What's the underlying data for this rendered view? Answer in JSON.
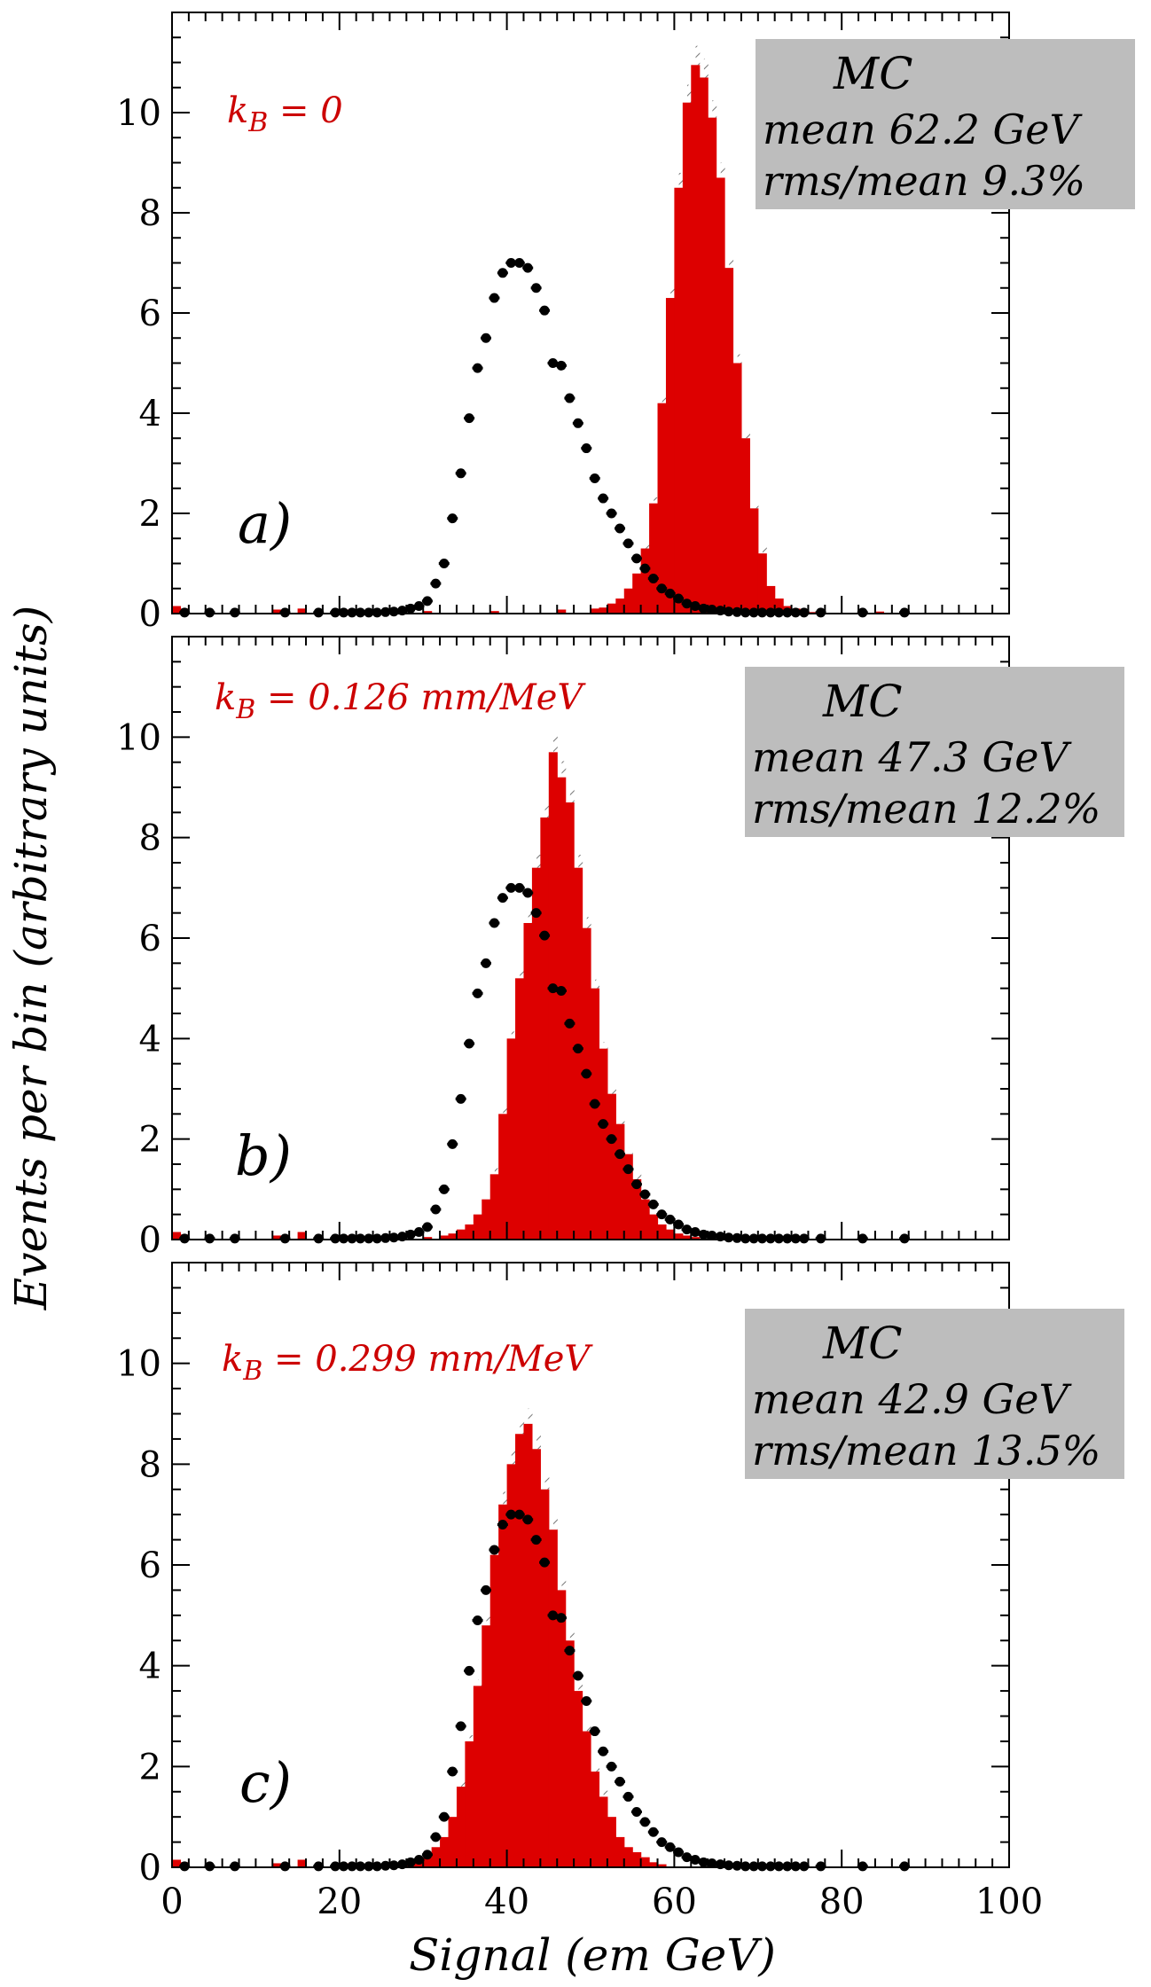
{
  "figure": {
    "ylabel": "Events per bin (arbitrary units)",
    "xlabel": "Signal (em GeV)"
  },
  "colors": {
    "mc_fill": "#dd0000",
    "data_marker": "#000000",
    "stat_box": "#bdbdbd",
    "label_red": "#cc0000",
    "error_hatch": "#777777"
  },
  "chart_data": [
    {
      "type": "bar",
      "panel_label": "a)",
      "kb_label": "kB = 0",
      "kb_sub": "B",
      "kb_text_pre": "k",
      "kb_text_post": " = 0",
      "stat_box": {
        "title": "MC",
        "mean_label": "mean",
        "mean_value": "62.2 GeV",
        "rms_label": "rms/mean",
        "rms_value": "9.3%"
      },
      "xlim": [
        0,
        100
      ],
      "ylim": [
        0,
        12
      ],
      "yticks": [
        0,
        2,
        4,
        6,
        8,
        10
      ],
      "xticks": [
        0,
        20,
        40,
        60,
        80,
        100
      ],
      "series": [
        {
          "kind": "histogram",
          "bin_width": 1,
          "x": [
            0,
            1,
            7,
            12,
            15,
            20,
            30,
            38,
            46,
            50,
            51,
            52,
            53,
            54,
            55,
            56,
            57,
            58,
            59,
            60,
            61,
            62,
            63,
            64,
            65,
            66,
            67,
            68,
            69,
            70,
            71,
            72,
            73,
            74,
            75,
            76,
            84
          ],
          "values": [
            0.15,
            0.1,
            0.05,
            0.08,
            0.1,
            0.08,
            0.05,
            0.05,
            0.08,
            0.1,
            0.12,
            0.2,
            0.3,
            0.5,
            0.8,
            1.3,
            2.2,
            4.2,
            6.3,
            8.5,
            10.2,
            10.95,
            10.7,
            9.9,
            8.7,
            6.9,
            5.0,
            3.5,
            2.1,
            1.2,
            0.55,
            0.3,
            0.15,
            0.1,
            0.06,
            0.03,
            0.04
          ]
        },
        {
          "kind": "data_points",
          "x": [
            1,
            4,
            7,
            13,
            17,
            19,
            20,
            21,
            22,
            23,
            24,
            25,
            26,
            27,
            28,
            29,
            30,
            31,
            32,
            33,
            34,
            35,
            36,
            37,
            38,
            39,
            40,
            41,
            42,
            43,
            44,
            45,
            46,
            47,
            48,
            49,
            50,
            51,
            52,
            53,
            54,
            55,
            56,
            57,
            58,
            59,
            60,
            61,
            62,
            63,
            64,
            65,
            66,
            67,
            68,
            69,
            70,
            71,
            72,
            73,
            74,
            75,
            77,
            82,
            87
          ],
          "values": [
            0.02,
            0.02,
            0.02,
            0.02,
            0.02,
            0.02,
            0.02,
            0.02,
            0.02,
            0.02,
            0.02,
            0.03,
            0.04,
            0.06,
            0.1,
            0.15,
            0.25,
            0.6,
            1.0,
            1.9,
            2.8,
            3.9,
            4.9,
            5.5,
            6.3,
            6.8,
            7.0,
            7.0,
            6.9,
            6.5,
            6.05,
            5.0,
            4.95,
            4.3,
            3.8,
            3.3,
            2.7,
            2.3,
            2.0,
            1.7,
            1.4,
            1.1,
            0.9,
            0.7,
            0.5,
            0.4,
            0.3,
            0.2,
            0.15,
            0.1,
            0.08,
            0.06,
            0.04,
            0.03,
            0.02,
            0.02,
            0.02,
            0.02,
            0.02,
            0.02,
            0.02,
            0.02,
            0.02,
            0.02,
            0.02
          ]
        }
      ]
    },
    {
      "type": "bar",
      "panel_label": "b)",
      "kb_sub": "B",
      "kb_text_pre": "k",
      "kb_text_post": " = 0.126 mm/MeV",
      "stat_box": {
        "title": "MC",
        "mean_label": "mean",
        "mean_value": "47.3 GeV",
        "rms_label": "rms/mean",
        "rms_value": "12.2%"
      },
      "xlim": [
        0,
        100
      ],
      "ylim": [
        0,
        12
      ],
      "yticks": [
        0,
        2,
        4,
        6,
        8,
        10
      ],
      "xticks": [
        0,
        20,
        40,
        60,
        80,
        100
      ],
      "series": [
        {
          "kind": "histogram",
          "bin_width": 1,
          "x": [
            0,
            1,
            7,
            12,
            15,
            20,
            30,
            32,
            33,
            34,
            35,
            36,
            37,
            38,
            39,
            40,
            41,
            42,
            43,
            44,
            45,
            46,
            47,
            48,
            49,
            50,
            51,
            52,
            53,
            54,
            55,
            56,
            57,
            58,
            59,
            60,
            61,
            62
          ],
          "values": [
            0.15,
            0.1,
            0.05,
            0.08,
            0.15,
            0.08,
            0.05,
            0.08,
            0.12,
            0.2,
            0.3,
            0.5,
            0.8,
            1.3,
            2.5,
            4.0,
            5.2,
            6.3,
            7.4,
            8.4,
            9.7,
            9.2,
            8.7,
            7.4,
            6.2,
            5.0,
            3.8,
            2.9,
            2.3,
            1.7,
            1.2,
            0.8,
            0.5,
            0.3,
            0.2,
            0.12,
            0.08,
            0.05
          ]
        },
        {
          "kind": "data_points",
          "x": [
            1,
            4,
            7,
            13,
            17,
            19,
            20,
            21,
            22,
            23,
            24,
            25,
            26,
            27,
            28,
            29,
            30,
            31,
            32,
            33,
            34,
            35,
            36,
            37,
            38,
            39,
            40,
            41,
            42,
            43,
            44,
            45,
            46,
            47,
            48,
            49,
            50,
            51,
            52,
            53,
            54,
            55,
            56,
            57,
            58,
            59,
            60,
            61,
            62,
            63,
            64,
            65,
            66,
            67,
            68,
            69,
            70,
            71,
            72,
            73,
            74,
            75,
            77,
            82,
            87
          ],
          "values": [
            0.02,
            0.02,
            0.02,
            0.02,
            0.02,
            0.02,
            0.02,
            0.02,
            0.02,
            0.02,
            0.02,
            0.03,
            0.04,
            0.06,
            0.1,
            0.15,
            0.25,
            0.6,
            1.0,
            1.9,
            2.8,
            3.9,
            4.9,
            5.5,
            6.3,
            6.8,
            7.0,
            7.0,
            6.9,
            6.5,
            6.05,
            5.0,
            4.95,
            4.3,
            3.8,
            3.3,
            2.7,
            2.3,
            2.0,
            1.7,
            1.4,
            1.1,
            0.9,
            0.7,
            0.5,
            0.4,
            0.3,
            0.2,
            0.15,
            0.1,
            0.08,
            0.06,
            0.04,
            0.03,
            0.02,
            0.02,
            0.02,
            0.02,
            0.02,
            0.02,
            0.02,
            0.02,
            0.02,
            0.02,
            0.02
          ]
        }
      ]
    },
    {
      "type": "bar",
      "panel_label": "c)",
      "kb_sub": "B",
      "kb_text_pre": "k",
      "kb_text_post": " = 0.299 mm/MeV",
      "stat_box": {
        "title": "MC",
        "mean_label": "mean",
        "mean_value": "42.9 GeV",
        "rms_label": "rms/mean",
        "rms_value": "13.5%"
      },
      "xlim": [
        0,
        100
      ],
      "ylim": [
        0,
        12
      ],
      "yticks": [
        0,
        2,
        4,
        6,
        8,
        10
      ],
      "xticks": [
        0,
        20,
        40,
        60,
        80,
        100
      ],
      "series": [
        {
          "kind": "histogram",
          "bin_width": 1,
          "x": [
            0,
            1,
            7,
            12,
            15,
            20,
            28,
            29,
            30,
            31,
            32,
            33,
            34,
            35,
            36,
            37,
            38,
            39,
            40,
            41,
            42,
            43,
            44,
            45,
            46,
            47,
            48,
            49,
            50,
            51,
            52,
            53,
            54,
            55,
            56,
            57,
            58
          ],
          "values": [
            0.15,
            0.1,
            0.05,
            0.08,
            0.15,
            0.08,
            0.05,
            0.1,
            0.2,
            0.4,
            0.6,
            1.0,
            1.6,
            2.5,
            3.6,
            4.8,
            6.2,
            7.2,
            8.0,
            8.6,
            8.8,
            8.3,
            7.5,
            6.7,
            5.5,
            4.5,
            3.5,
            2.7,
            1.9,
            1.4,
            1.0,
            0.6,
            0.4,
            0.3,
            0.2,
            0.1,
            0.06
          ]
        },
        {
          "kind": "data_points",
          "x": [
            1,
            4,
            7,
            13,
            17,
            19,
            20,
            21,
            22,
            23,
            24,
            25,
            26,
            27,
            28,
            29,
            30,
            31,
            32,
            33,
            34,
            35,
            36,
            37,
            38,
            39,
            40,
            41,
            42,
            43,
            44,
            45,
            46,
            47,
            48,
            49,
            50,
            51,
            52,
            53,
            54,
            55,
            56,
            57,
            58,
            59,
            60,
            61,
            62,
            63,
            64,
            65,
            66,
            67,
            68,
            69,
            70,
            71,
            72,
            73,
            74,
            75,
            77,
            82,
            87
          ],
          "values": [
            0.02,
            0.02,
            0.02,
            0.02,
            0.02,
            0.02,
            0.02,
            0.02,
            0.02,
            0.02,
            0.02,
            0.03,
            0.04,
            0.06,
            0.1,
            0.15,
            0.25,
            0.6,
            1.0,
            1.9,
            2.8,
            3.9,
            4.9,
            5.5,
            6.3,
            6.8,
            7.0,
            7.0,
            6.9,
            6.5,
            6.05,
            5.0,
            4.95,
            4.3,
            3.8,
            3.3,
            2.7,
            2.3,
            2.0,
            1.7,
            1.4,
            1.1,
            0.9,
            0.7,
            0.5,
            0.4,
            0.3,
            0.2,
            0.15,
            0.1,
            0.08,
            0.06,
            0.04,
            0.03,
            0.02,
            0.02,
            0.02,
            0.02,
            0.02,
            0.02,
            0.02,
            0.02,
            0.02,
            0.02,
            0.02
          ]
        }
      ]
    }
  ]
}
